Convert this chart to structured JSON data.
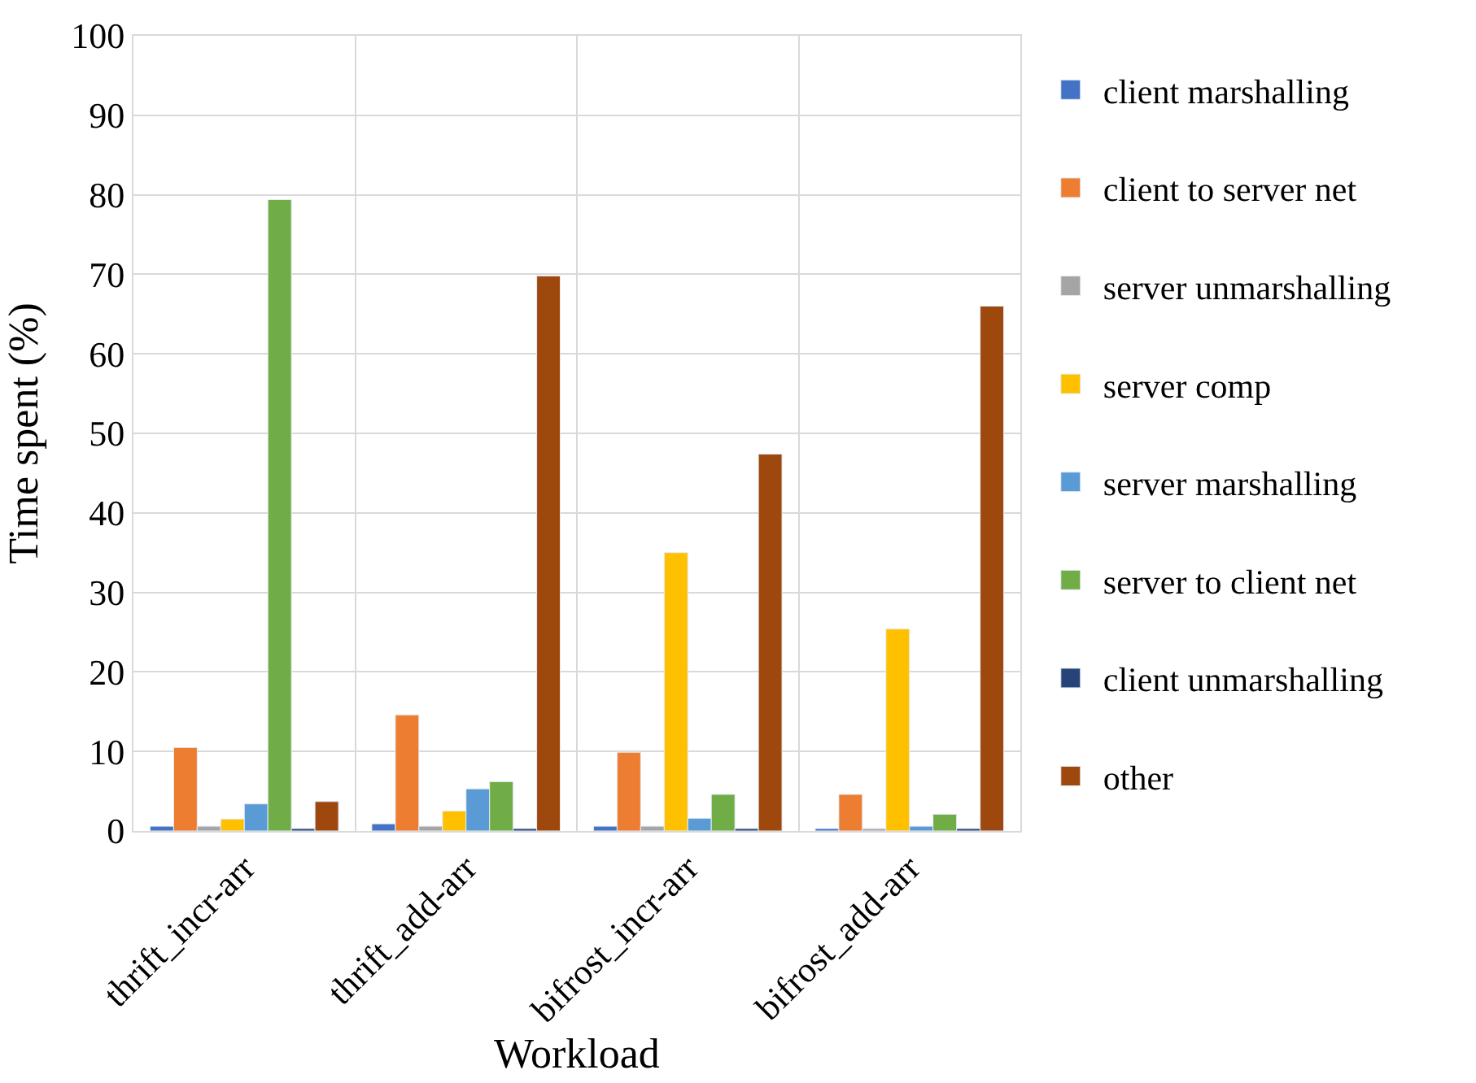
{
  "chart_data": {
    "type": "bar",
    "xlabel": "Workload",
    "ylabel": "Time spent (%)",
    "categories": [
      "thrift_incr-arr",
      "thrift_add-arr",
      "bifrost_incr-arr",
      "bifrost_add-arr"
    ],
    "series": [
      {
        "name": "client marshalling",
        "color": "#4472c4",
        "values": [
          0.6,
          0.9,
          0.6,
          0.3
        ]
      },
      {
        "name": "client to server net",
        "color": "#ed7d31",
        "values": [
          10.5,
          14.6,
          9.9,
          4.6
        ]
      },
      {
        "name": "server unmarshalling",
        "color": "#a5a5a5",
        "values": [
          0.6,
          0.6,
          0.6,
          0.3
        ]
      },
      {
        "name": "server comp",
        "color": "#ffc000",
        "values": [
          1.5,
          2.5,
          35.0,
          25.4
        ]
      },
      {
        "name": "server marshalling",
        "color": "#5b9bd5",
        "values": [
          3.4,
          5.3,
          1.6,
          0.6
        ]
      },
      {
        "name": "server to client net",
        "color": "#70ad47",
        "values": [
          79.4,
          6.2,
          4.6,
          2.1
        ]
      },
      {
        "name": "client unmarshalling",
        "color": "#264478",
        "values": [
          0.3,
          0.3,
          0.3,
          0.3
        ]
      },
      {
        "name": "other",
        "color": "#9e480e",
        "values": [
          3.7,
          69.8,
          47.4,
          66.0
        ]
      }
    ],
    "ylim": [
      0,
      100
    ],
    "yticks": [
      0,
      10,
      20,
      30,
      40,
      50,
      60,
      70,
      80,
      90,
      100
    ],
    "grid": true,
    "legend": "right"
  }
}
